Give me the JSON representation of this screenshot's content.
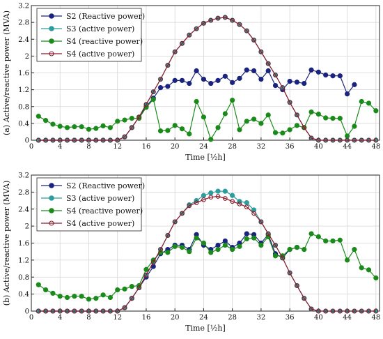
{
  "chart_data": [
    {
      "type": "line",
      "ylabel": "(a) Active/reactive power (MVA)",
      "xlabel": "Time [½h]",
      "xlim": [
        0,
        48.5
      ],
      "ylim": [
        0,
        3.2
      ],
      "xticks": [
        0,
        4,
        8,
        12,
        16,
        20,
        24,
        28,
        32,
        36,
        40,
        44,
        48
      ],
      "yticks": [
        0,
        0.4,
        0.8,
        1.2,
        1.6,
        2,
        2.4,
        2.8,
        3.2
      ],
      "ytick_labels": [
        "0",
        "0.4",
        "0.8",
        "1.2",
        "1.6",
        "2",
        "2.4",
        "2.8",
        "3.2"
      ],
      "grid": true,
      "legend": "top-left",
      "x": [
        1,
        2,
        3,
        4,
        5,
        6,
        7,
        8,
        9,
        10,
        11,
        12,
        13,
        14,
        15,
        16,
        17,
        18,
        19,
        20,
        21,
        22,
        23,
        24,
        25,
        26,
        27,
        28,
        29,
        30,
        31,
        32,
        33,
        34,
        35,
        36,
        37,
        38,
        39,
        40,
        41,
        42,
        43,
        44,
        45,
        46,
        47,
        48
      ],
      "series": [
        {
          "name": "S2 (Reactive power)",
          "color": "#1a237e",
          "marker": "filled",
          "values": [
            0,
            0,
            0,
            0,
            0,
            0,
            0,
            0,
            0,
            0,
            0,
            0,
            0.08,
            0.3,
            0.55,
            0.8,
            1.0,
            1.25,
            1.28,
            1.42,
            1.42,
            1.35,
            1.65,
            1.45,
            1.35,
            1.42,
            1.52,
            1.37,
            1.47,
            1.67,
            1.65,
            1.45,
            1.65,
            1.3,
            1.2,
            1.4,
            1.38,
            1.35,
            1.67,
            1.62,
            1.55,
            1.53,
            1.53,
            1.1,
            1.32,
            null,
            null,
            null
          ]
        },
        {
          "name": "S3 (active power)",
          "color": "#2a9d9d",
          "marker": "filled",
          "values": [
            0,
            0,
            0,
            0,
            0,
            0,
            0,
            0,
            0,
            0,
            0,
            0,
            0.08,
            0.3,
            0.55,
            0.85,
            1.15,
            1.45,
            1.78,
            2.1,
            2.3,
            2.5,
            2.65,
            2.78,
            2.85,
            2.9,
            2.92,
            2.85,
            2.75,
            2.6,
            2.38,
            2.1,
            1.82,
            1.55,
            1.25,
            0.9,
            0.6,
            0.3,
            0.05,
            0,
            0,
            0,
            0,
            0,
            0,
            0,
            0,
            0
          ]
        },
        {
          "name": "S4 (reactive power)",
          "color": "#1a8a1a",
          "marker": "filled",
          "values": [
            0.57,
            0.47,
            0.38,
            0.33,
            0.3,
            0.32,
            0.32,
            0.26,
            0.28,
            0.34,
            0.3,
            0.45,
            0.48,
            0.52,
            0.52,
            0.78,
            0.97,
            0.22,
            0.23,
            0.35,
            0.27,
            0.15,
            0.92,
            0.55,
            0.02,
            0.3,
            0.63,
            0.95,
            0.25,
            0.45,
            0.5,
            0.4,
            0.6,
            0.18,
            0.17,
            0.25,
            0.35,
            0.3,
            0.67,
            0.62,
            0.53,
            0.52,
            0.52,
            0.1,
            0.33,
            0.92,
            0.88,
            0.7
          ]
        },
        {
          "name": "S4 (active power)",
          "color": "#8b1a2b",
          "marker": "hollow",
          "values": [
            0,
            0,
            0,
            0,
            0,
            0,
            0,
            0,
            0,
            0,
            0,
            0,
            0.08,
            0.3,
            0.55,
            0.85,
            1.15,
            1.45,
            1.78,
            2.1,
            2.3,
            2.5,
            2.65,
            2.78,
            2.85,
            2.9,
            2.92,
            2.85,
            2.75,
            2.6,
            2.38,
            2.1,
            1.82,
            1.55,
            1.25,
            0.9,
            0.6,
            0.3,
            0.05,
            0,
            0,
            0,
            0,
            0,
            0,
            0,
            0,
            0
          ]
        }
      ]
    },
    {
      "type": "line",
      "ylabel": "(b) Active/reactive power (MVA)",
      "xlabel": "Time [½h]",
      "xlim": [
        0,
        48.5
      ],
      "ylim": [
        0,
        3.2
      ],
      "xticks": [
        0,
        4,
        8,
        12,
        16,
        20,
        24,
        28,
        32,
        36,
        40,
        44,
        48
      ],
      "yticks": [
        0,
        0.4,
        0.8,
        1.2,
        1.6,
        2,
        2.4,
        2.8,
        3.2
      ],
      "ytick_labels": [
        "0",
        "0.4",
        "0.8",
        "1.2",
        "1.6",
        "2",
        "2.4",
        "2.8",
        "3.2"
      ],
      "grid": true,
      "legend": "top-left",
      "x": [
        1,
        2,
        3,
        4,
        5,
        6,
        7,
        8,
        9,
        10,
        11,
        12,
        13,
        14,
        15,
        16,
        17,
        18,
        19,
        20,
        21,
        22,
        23,
        24,
        25,
        26,
        27,
        28,
        29,
        30,
        31,
        32,
        33,
        34,
        35,
        36,
        37,
        38,
        39,
        40,
        41,
        42,
        43,
        44,
        45,
        46,
        47,
        48
      ],
      "series": [
        {
          "name": "S2 (Reactive power)",
          "color": "#1a237e",
          "marker": "filled",
          "values": [
            0,
            0,
            0,
            0,
            0,
            0,
            0,
            0,
            0,
            0,
            0,
            0,
            0.08,
            0.3,
            0.55,
            0.8,
            1.05,
            1.35,
            1.45,
            1.55,
            1.55,
            1.45,
            1.8,
            1.55,
            1.45,
            1.55,
            1.65,
            1.5,
            1.6,
            1.82,
            1.8,
            1.6,
            1.8,
            1.35,
            1.25,
            1.45,
            1.5,
            null,
            null,
            null,
            null,
            null,
            null,
            null,
            null,
            null,
            null,
            null
          ]
        },
        {
          "name": "S3 (active power)",
          "color": "#2a9d9d",
          "marker": "filled",
          "values": [
            0,
            0,
            0,
            0,
            0,
            0,
            0,
            0,
            0,
            0,
            0,
            0,
            0.08,
            0.3,
            0.55,
            0.85,
            1.15,
            1.45,
            1.78,
            2.1,
            2.3,
            2.5,
            2.6,
            2.72,
            2.78,
            2.82,
            2.82,
            2.72,
            2.58,
            2.55,
            2.38,
            2.1,
            1.82,
            1.55,
            1.25,
            0.9,
            0.6,
            0.3,
            0.05,
            0,
            0,
            0,
            0,
            0,
            0,
            0,
            0,
            0
          ]
        },
        {
          "name": "S4 (reactive power)",
          "color": "#1a8a1a",
          "marker": "filled",
          "values": [
            0.62,
            0.5,
            0.42,
            0.35,
            0.32,
            0.35,
            0.35,
            0.28,
            0.3,
            0.38,
            0.32,
            0.5,
            0.52,
            0.58,
            0.6,
            0.98,
            1.2,
            1.38,
            1.38,
            1.52,
            1.5,
            1.4,
            1.72,
            1.6,
            1.38,
            1.45,
            1.55,
            1.45,
            1.52,
            1.7,
            1.72,
            1.55,
            1.75,
            1.3,
            1.3,
            1.45,
            1.5,
            1.45,
            1.82,
            1.75,
            1.65,
            1.65,
            1.67,
            1.2,
            1.45,
            1.02,
            0.97,
            0.78
          ]
        },
        {
          "name": "S4 (active power)",
          "color": "#8b1a2b",
          "marker": "hollow",
          "values": [
            0,
            0,
            0,
            0,
            0,
            0,
            0,
            0,
            0,
            0,
            0,
            0,
            0.08,
            0.3,
            0.55,
            0.85,
            1.15,
            1.45,
            1.78,
            2.1,
            2.3,
            2.48,
            2.55,
            2.62,
            2.68,
            2.7,
            2.65,
            2.58,
            2.52,
            2.45,
            2.3,
            2.1,
            1.82,
            1.55,
            1.25,
            0.9,
            0.6,
            0.3,
            0.05,
            0,
            0,
            0,
            0,
            0,
            0,
            0,
            0,
            0
          ]
        }
      ]
    }
  ]
}
